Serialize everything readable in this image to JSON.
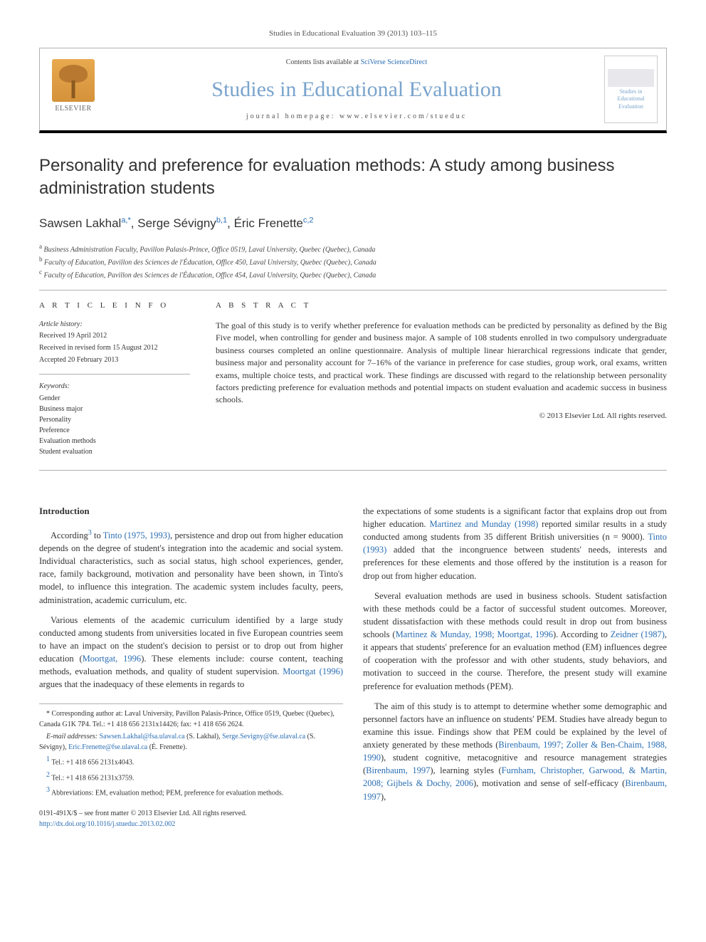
{
  "running_header": "Studies in Educational Evaluation 39 (2013) 103–115",
  "header": {
    "publisher_name": "ELSEVIER",
    "contents_prefix": "Contents lists available at ",
    "contents_link": "SciVerse ScienceDirect",
    "journal_title": "Studies in Educational Evaluation",
    "homepage_prefix": "journal homepage: ",
    "homepage_url": "www.elsevier.com/stueduc",
    "cover_text": "Studies in Educational Evaluation"
  },
  "article": {
    "title": "Personality and preference for evaluation methods: A study among business administration students",
    "authors_html": "Sawsen Lakhal|a,*|, Serge Sévigny|b,1|, Éric Frenette|c,2|",
    "authors": [
      {
        "name": "Sawsen Lakhal",
        "marks": "a,*"
      },
      {
        "name": "Serge Sévigny",
        "marks": "b,1"
      },
      {
        "name": "Éric Frenette",
        "marks": "c,2"
      }
    ],
    "separator": ", ",
    "affiliations": [
      {
        "mark": "a",
        "text": "Business Administration Faculty, Pavillon Palasis-Prince, Office 0519, Laval University, Quebec (Quebec), Canada"
      },
      {
        "mark": "b",
        "text": "Faculty of Education, Pavillon des Sciences de l'Éducation, Office 450, Laval University, Quebec (Quebec), Canada"
      },
      {
        "mark": "c",
        "text": "Faculty of Education, Pavillon des Sciences de l'Éducation, Office 454, Laval University, Quebec (Quebec), Canada"
      }
    ]
  },
  "info": {
    "heading": "A R T I C L E   I N F O",
    "history_label": "Article history:",
    "history": [
      "Received 19 April 2012",
      "Received in revised form 15 August 2012",
      "Accepted 20 February 2013"
    ],
    "keywords_label": "Keywords:",
    "keywords": [
      "Gender",
      "Business major",
      "Personality",
      "Preference",
      "Evaluation methods",
      "Student evaluation"
    ]
  },
  "abstract": {
    "heading": "A B S T R A C T",
    "text": "The goal of this study is to verify whether preference for evaluation methods can be predicted by personality as defined by the Big Five model, when controlling for gender and business major. A sample of 108 students enrolled in two compulsory undergraduate business courses completed an online questionnaire. Analysis of multiple linear hierarchical regressions indicate that gender, business major and personality account for 7–16% of the variance in preference for case studies, group work, oral exams, written exams, multiple choice tests, and practical work. These findings are discussed with regard to the relationship between personality factors predicting preference for evaluation methods and potential impacts on student evaluation and academic success in business schools.",
    "copyright": "© 2013 Elsevier Ltd. All rights reserved."
  },
  "body": {
    "intro_heading": "Introduction",
    "left_paras": [
      {
        "pre": "According",
        "sup": "3",
        "post": " to ",
        "cite": "Tinto (1975, 1993)",
        "tail": ", persistence and drop out from higher education depends on the degree of student's integration into the academic and social system. Individual characteristics, such as social status, high school experiences, gender, race, family background, motivation and personality have been shown, in Tinto's model, to influence this integration. The academic system includes faculty, peers, administration, academic curriculum, etc."
      },
      {
        "pre": "Various elements of the academic curriculum identified by a large study conducted among students from universities located in five European countries seem to have an impact on the student's decision to persist or to drop out from higher education (",
        "cite": "Moortgat, 1996",
        "post": "). These elements include: course content, teaching methods, evaluation methods, and quality of student supervision. ",
        "cite2": "Moortgat (1996)",
        "tail": " argues that the inadequacy of these elements in regards to"
      }
    ],
    "right_paras": [
      {
        "pre": "the expectations of some students is a significant factor that explains drop out from higher education. ",
        "cite": "Martinez and Munday (1998)",
        "mid": " reported similar results in a study conducted among students from 35 different British universities (n = 9000). ",
        "cite2": "Tinto (1993)",
        "tail": " added that the incongruence between students' needs, interests and preferences for these elements and those offered by the institution is a reason for drop out from higher education."
      },
      {
        "pre": "Several evaluation methods are used in business schools. Student satisfaction with these methods could be a factor of successful student outcomes. Moreover, student dissatisfaction with these methods could result in drop out from business schools (",
        "cite": "Martinez & Munday, 1998; Moortgat, 1996",
        "mid": "). According to ",
        "cite2": "Zeidner (1987)",
        "tail": ", it appears that students' preference for an evaluation method (EM) influences degree of cooperation with the professor and with other students, study behaviors, and motivation to succeed in the course. Therefore, the present study will examine preference for evaluation methods (PEM)."
      },
      {
        "pre": "The aim of this study is to attempt to determine whether some demographic and personnel factors have an influence on students' PEM. Studies have already begun to examine this issue. Findings show that PEM could be explained by the level of anxiety generated by these methods (",
        "cite": "Birenbaum, 1997; Zoller & Ben-Chaim, 1988, 1990",
        "mid": "), student cognitive, metacognitive and resource management strategies (",
        "cite2": "Birenbaum, 1997",
        "mid2": "), learning styles (",
        "cite3": "Furnham, Christopher, Garwood, & Martin, 2008; Gijbels & Dochy, 2006",
        "mid3": "), motivation and sense of self-efficacy (",
        "cite4": "Birenbaum, 1997",
        "tail": "),"
      }
    ]
  },
  "footnotes": {
    "corresponding": {
      "mark": "*",
      "text": "Corresponding author at: Laval University, Pavillon Palasis-Prince, Office 0519, Quebec (Quebec), Canada G1K 7P4. Tel.: +1 418 656 2131x14426; fax: +1 418 656 2624."
    },
    "email_label": "E-mail addresses:",
    "emails": [
      {
        "addr": "Sawsen.Lakhal@fsa.ulaval.ca",
        "who": " (S. Lakhal),"
      },
      {
        "addr": "Serge.Sevigny@fse.ulaval.ca",
        "who": " (S. Sévigny), "
      },
      {
        "addr": "Eric.Frenette@fse.ulaval.ca",
        "who": " (É. Frenette)."
      }
    ],
    "tels": [
      {
        "mark": "1",
        "text": "Tel.: +1 418 656 2131x4043."
      },
      {
        "mark": "2",
        "text": "Tel.: +1 418 656 2131x3759."
      }
    ],
    "abbrev": {
      "mark": "3",
      "text": "Abbreviations: EM, evaluation method; PEM, preference for evaluation methods."
    }
  },
  "bottom": {
    "issn_line": "0191-491X/$ – see front matter © 2013 Elsevier Ltd. All rights reserved.",
    "doi": "http://dx.doi.org/10.1016/j.stueduc.2013.02.002"
  },
  "colors": {
    "link": "#2a6eb3",
    "journal_title": "#7aa4cc",
    "border": "#b0b0b0",
    "text": "#333333"
  },
  "typography": {
    "body_font": "Georgia, Times New Roman, serif",
    "title_font": "Arial, Helvetica, sans-serif",
    "body_size_pt": 12.5,
    "title_size_pt": 24,
    "journal_title_size_pt": 30,
    "abstract_size_pt": 12,
    "footnote_size_pt": 10
  }
}
